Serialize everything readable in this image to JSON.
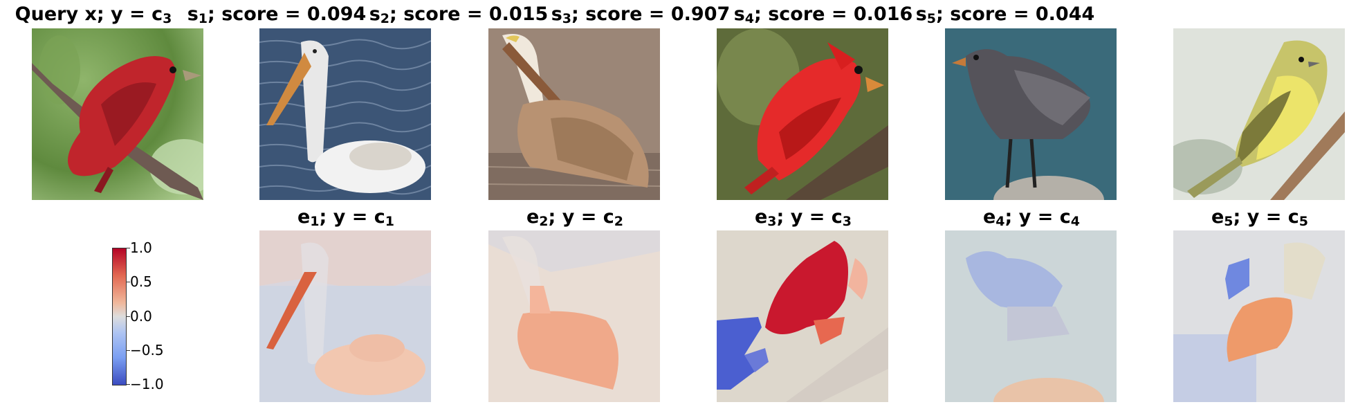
{
  "query": {
    "title_prefix": "Query x; y",
    "eq": "=",
    "class_var": "c",
    "class_sub": "3"
  },
  "row1": [
    {
      "s": "s",
      "sub": "1",
      "label": "; score = ",
      "score": "0.094"
    },
    {
      "s": "s",
      "sub": "2",
      "label": "; score = ",
      "score": "0.015"
    },
    {
      "s": "s",
      "sub": "3",
      "label": "; score = ",
      "score": "0.907"
    },
    {
      "s": "s",
      "sub": "4",
      "label": "; score = ",
      "score": "0.016"
    },
    {
      "s": "s",
      "sub": "5",
      "label": "; score = ",
      "score": "0.044"
    }
  ],
  "row2": [
    {
      "e": "e",
      "sub": "1",
      "mid": "; y = ",
      "c": "c",
      "csub": "1"
    },
    {
      "e": "e",
      "sub": "2",
      "mid": "; y = ",
      "c": "c",
      "csub": "2"
    },
    {
      "e": "e",
      "sub": "3",
      "mid": "; y = ",
      "c": "c",
      "csub": "3"
    },
    {
      "e": "e",
      "sub": "4",
      "mid": "; y = ",
      "c": "c",
      "csub": "4"
    },
    {
      "e": "e",
      "sub": "5",
      "mid": "; y = ",
      "c": "c",
      "csub": "5"
    }
  ],
  "colorbar": {
    "ticks": [
      "1.0",
      "0.5",
      "0.0",
      "−0.5",
      "−1.0"
    ],
    "colors": {
      "high": "#b40426",
      "mid": "#dddddd",
      "low": "#3b4cc0"
    }
  },
  "images": {
    "query": "red-cardinal-on-branch",
    "s1": "white-pelican-in-water",
    "s2": "brown-pelican",
    "s3": "red-cardinal",
    "s4": "grey-gull-on-rock",
    "s5": "yellow-warbler-on-twig"
  }
}
